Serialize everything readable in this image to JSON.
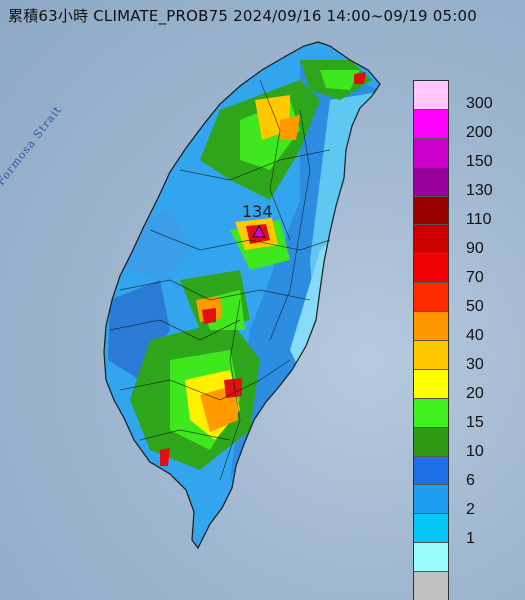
{
  "title": "累積63小時 CLIMATE_PROB75 2024/09/16 14:00~09/19 05:00",
  "strait": "Formosa Strait",
  "max_value": "134",
  "legend": [
    "300",
    "200",
    "150",
    "130",
    "110",
    "90",
    "70",
    "50",
    "40",
    "30",
    "20",
    "15",
    "10",
    "6",
    "2",
    "1"
  ],
  "legend_colors": [
    "#ffc6ff",
    "#ff00ff",
    "#cc00cc",
    "#990099",
    "#990000",
    "#cc0000",
    "#ee0000",
    "#ff2a00",
    "#ff9800",
    "#ffc800",
    "#ffff00",
    "#3ff21e",
    "#2e9a12",
    "#1e6ee8",
    "#1e9ef0",
    "#05c8f8",
    "#9afcfc",
    "#c0c0c0"
  ]
}
